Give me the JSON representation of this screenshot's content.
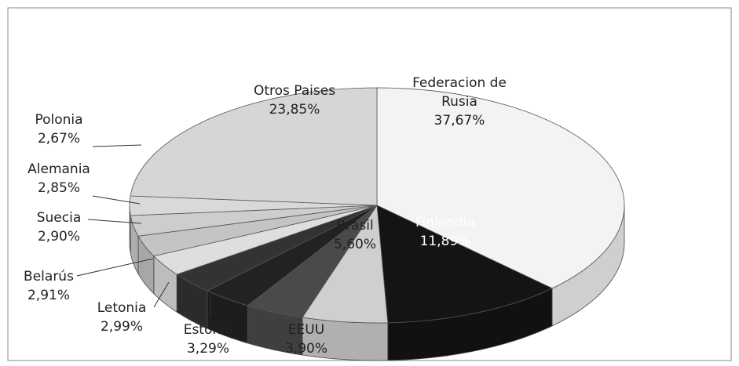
{
  "chart_data": {
    "type": "pie",
    "categories": [
      "Federacion de Rusia",
      "Finlandia",
      "Brasil",
      "EEUU",
      "Estonia",
      "Letonia",
      "Belarús",
      "Suecia",
      "Alemania",
      "Polonia",
      "Otros Paises"
    ],
    "values": [
      37.67,
      11.89,
      5.6,
      3.9,
      3.29,
      2.99,
      2.91,
      2.9,
      2.85,
      2.67,
      23.85
    ],
    "value_labels": [
      "37,67%",
      "11,89%",
      "5,60%",
      "3,90%",
      "3,29%",
      "2,99%",
      "2,91%",
      "2,90%",
      "2,85%",
      "2,67%",
      "23,85%"
    ],
    "colors": [
      "#f3f3f3",
      "#141414",
      "#cfcfcf",
      "#4a4a4a",
      "#222222",
      "#333333",
      "#dedede",
      "#c4c4c4",
      "#cdcdcd",
      "#d9d9d9",
      "#d6d6d6"
    ]
  }
}
